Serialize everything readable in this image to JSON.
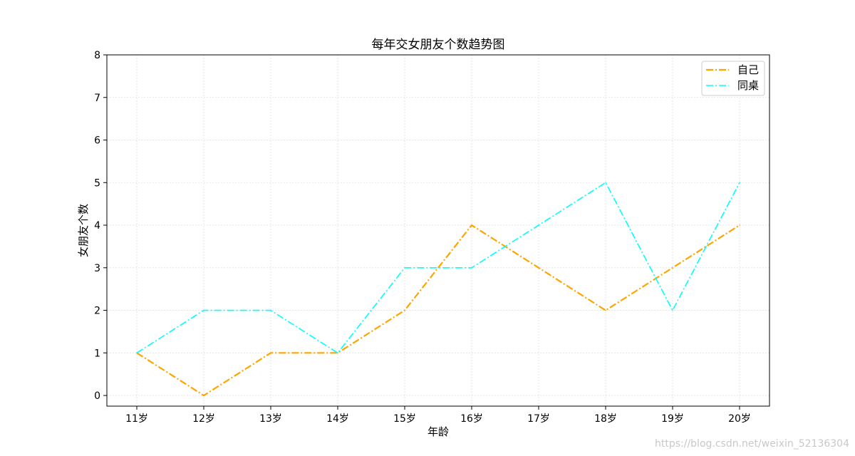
{
  "chart_data": {
    "type": "line",
    "title": "每年交女朋友个数趋势图",
    "xlabel": "年龄",
    "ylabel": "女朋友个数",
    "categories": [
      "11岁",
      "12岁",
      "13岁",
      "14岁",
      "15岁",
      "16岁",
      "17岁",
      "18岁",
      "19岁",
      "20岁"
    ],
    "yticks": [
      "0",
      "1",
      "2",
      "3",
      "4",
      "5",
      "6",
      "7",
      "8"
    ],
    "ylim": [
      -0.25,
      8
    ],
    "grid": true,
    "legend_position": "top-right",
    "series": [
      {
        "name": "自己",
        "values": [
          1,
          0,
          1,
          1,
          2,
          4,
          3,
          2,
          3,
          4
        ],
        "color": "#ffa500",
        "line_style": "dash-dot"
      },
      {
        "name": "同桌",
        "values": [
          1,
          2,
          2,
          1,
          3,
          3,
          4,
          5,
          2,
          5
        ],
        "color": "#00ffff",
        "line_style": "dash-dot"
      }
    ]
  },
  "watermark": "https://blog.csdn.net/weixin_52136304"
}
